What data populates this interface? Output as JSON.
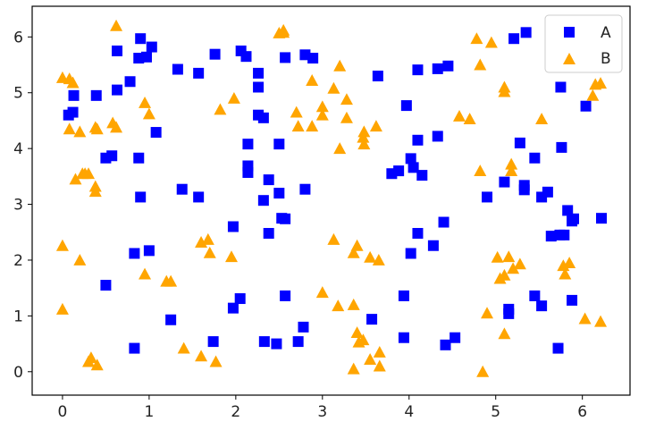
{
  "chart_data": {
    "type": "scatter",
    "title": "",
    "xlabel": "",
    "ylabel": "",
    "xlim": [
      -0.35,
      6.55
    ],
    "ylim": [
      -0.42,
      6.55
    ],
    "xticks": [
      "0",
      "1",
      "2",
      "3",
      "4",
      "5",
      "6"
    ],
    "yticks": [
      "0",
      "1",
      "2",
      "3",
      "4",
      "5",
      "6"
    ],
    "grid": false,
    "legend": "top-right",
    "series": [
      {
        "name": "A",
        "marker": "square",
        "color": "#0000ff",
        "points": [
          [
            0.07,
            4.6
          ],
          [
            0.12,
            4.65
          ],
          [
            0.13,
            4.95
          ],
          [
            0.39,
            4.95
          ],
          [
            0.5,
            1.55
          ],
          [
            0.5,
            3.83
          ],
          [
            0.57,
            3.87
          ],
          [
            0.63,
            5.05
          ],
          [
            0.63,
            5.75
          ],
          [
            0.78,
            5.2
          ],
          [
            0.83,
            0.42
          ],
          [
            0.83,
            2.12
          ],
          [
            0.88,
            3.83
          ],
          [
            0.88,
            5.62
          ],
          [
            0.9,
            3.13
          ],
          [
            0.9,
            5.97
          ],
          [
            0.97,
            5.64
          ],
          [
            1.0,
            2.17
          ],
          [
            1.03,
            5.82
          ],
          [
            1.08,
            4.29
          ],
          [
            1.25,
            0.93
          ],
          [
            1.33,
            5.42
          ],
          [
            1.38,
            3.27
          ],
          [
            1.57,
            3.13
          ],
          [
            1.57,
            5.35
          ],
          [
            1.74,
            0.54
          ],
          [
            1.76,
            5.69
          ],
          [
            1.97,
            1.14
          ],
          [
            1.97,
            2.6
          ],
          [
            2.05,
            1.31
          ],
          [
            2.06,
            5.75
          ],
          [
            2.12,
            5.65
          ],
          [
            2.14,
            4.08
          ],
          [
            2.14,
            3.57
          ],
          [
            2.14,
            3.69
          ],
          [
            2.26,
            5.35
          ],
          [
            2.26,
            5.1
          ],
          [
            2.26,
            4.6
          ],
          [
            2.32,
            4.55
          ],
          [
            2.32,
            3.07
          ],
          [
            2.33,
            0.54
          ],
          [
            2.38,
            2.48
          ],
          [
            2.38,
            3.44
          ],
          [
            2.47,
            0.5
          ],
          [
            2.5,
            3.2
          ],
          [
            2.5,
            4.08
          ],
          [
            2.53,
            2.75
          ],
          [
            2.57,
            1.36
          ],
          [
            2.57,
            2.74
          ],
          [
            2.57,
            5.63
          ],
          [
            2.72,
            0.54
          ],
          [
            2.78,
            0.8
          ],
          [
            2.8,
            3.27
          ],
          [
            2.8,
            5.68
          ],
          [
            2.89,
            5.62
          ],
          [
            3.57,
            0.94
          ],
          [
            3.64,
            5.3
          ],
          [
            3.8,
            3.55
          ],
          [
            3.88,
            3.6
          ],
          [
            3.94,
            0.61
          ],
          [
            3.94,
            1.36
          ],
          [
            3.97,
            4.77
          ],
          [
            4.02,
            3.82
          ],
          [
            4.02,
            2.12
          ],
          [
            4.05,
            3.66
          ],
          [
            4.1,
            4.15
          ],
          [
            4.1,
            5.41
          ],
          [
            4.1,
            2.48
          ],
          [
            4.15,
            3.52
          ],
          [
            4.28,
            2.26
          ],
          [
            4.33,
            5.43
          ],
          [
            4.33,
            4.22
          ],
          [
            4.4,
            2.68
          ],
          [
            4.42,
            0.48
          ],
          [
            4.45,
            5.48
          ],
          [
            4.53,
            0.61
          ],
          [
            4.9,
            3.13
          ],
          [
            5.1,
            3.4
          ],
          [
            5.15,
            1.04
          ],
          [
            5.15,
            1.12
          ],
          [
            5.21,
            5.97
          ],
          [
            5.28,
            4.1
          ],
          [
            5.33,
            3.26
          ],
          [
            5.33,
            3.34
          ],
          [
            5.35,
            6.08
          ],
          [
            5.45,
            3.83
          ],
          [
            5.45,
            1.36
          ],
          [
            5.53,
            1.18
          ],
          [
            5.53,
            3.13
          ],
          [
            5.6,
            3.22
          ],
          [
            5.64,
            2.43
          ],
          [
            5.72,
            0.42
          ],
          [
            5.74,
            2.45
          ],
          [
            5.75,
            5.1
          ],
          [
            5.76,
            4.02
          ],
          [
            5.79,
            2.45
          ],
          [
            5.83,
            2.89
          ],
          [
            5.88,
            2.7
          ],
          [
            5.9,
            2.74
          ],
          [
            5.88,
            1.28
          ],
          [
            6.04,
            4.76
          ],
          [
            6.22,
            2.75
          ]
        ]
      },
      {
        "name": "B",
        "marker": "triangle",
        "color": "#ffa500",
        "points": [
          [
            0.0,
            1.12
          ],
          [
            0.0,
            2.26
          ],
          [
            0.0,
            5.27
          ],
          [
            0.08,
            4.35
          ],
          [
            0.08,
            5.25
          ],
          [
            0.12,
            5.18
          ],
          [
            0.15,
            3.45
          ],
          [
            0.2,
            4.3
          ],
          [
            0.2,
            2.0
          ],
          [
            0.23,
            3.55
          ],
          [
            0.26,
            3.55
          ],
          [
            0.3,
            3.55
          ],
          [
            0.3,
            0.18
          ],
          [
            0.33,
            0.25
          ],
          [
            0.38,
            3.32
          ],
          [
            0.38,
            4.38
          ],
          [
            0.38,
            3.23
          ],
          [
            0.4,
            4.35
          ],
          [
            0.4,
            0.12
          ],
          [
            0.58,
            4.46
          ],
          [
            0.62,
            4.38
          ],
          [
            0.62,
            6.2
          ],
          [
            0.95,
            4.82
          ],
          [
            0.95,
            1.75
          ],
          [
            1.0,
            4.62
          ],
          [
            1.2,
            1.62
          ],
          [
            1.25,
            1.62
          ],
          [
            1.4,
            0.42
          ],
          [
            1.6,
            2.32
          ],
          [
            1.6,
            0.28
          ],
          [
            1.68,
            2.37
          ],
          [
            1.7,
            2.13
          ],
          [
            1.77,
            0.18
          ],
          [
            1.82,
            4.7
          ],
          [
            1.95,
            2.06
          ],
          [
            1.98,
            4.9
          ],
          [
            2.5,
            6.07
          ],
          [
            2.55,
            6.12
          ],
          [
            2.55,
            6.08
          ],
          [
            2.7,
            4.65
          ],
          [
            2.72,
            4.4
          ],
          [
            2.88,
            5.22
          ],
          [
            2.88,
            4.4
          ],
          [
            3.0,
            4.75
          ],
          [
            3.0,
            4.6
          ],
          [
            3.0,
            1.42
          ],
          [
            3.13,
            5.08
          ],
          [
            3.13,
            2.37
          ],
          [
            3.18,
            1.18
          ],
          [
            3.2,
            5.48
          ],
          [
            3.2,
            4.0
          ],
          [
            3.28,
            4.88
          ],
          [
            3.28,
            4.55
          ],
          [
            3.36,
            0.05
          ],
          [
            3.36,
            1.2
          ],
          [
            3.36,
            2.13
          ],
          [
            3.4,
            0.7
          ],
          [
            3.4,
            2.26
          ],
          [
            3.42,
            0.53
          ],
          [
            3.47,
            0.57
          ],
          [
            3.47,
            4.2
          ],
          [
            3.48,
            4.3
          ],
          [
            3.48,
            4.08
          ],
          [
            3.55,
            0.22
          ],
          [
            3.55,
            2.05
          ],
          [
            3.62,
            4.4
          ],
          [
            3.65,
            2.0
          ],
          [
            3.66,
            0.1
          ],
          [
            3.66,
            0.35
          ],
          [
            4.58,
            4.58
          ],
          [
            4.7,
            4.53
          ],
          [
            4.78,
            5.97
          ],
          [
            4.82,
            5.5
          ],
          [
            4.82,
            3.6
          ],
          [
            4.85,
            0.0
          ],
          [
            4.9,
            1.05
          ],
          [
            4.95,
            5.9
          ],
          [
            5.02,
            2.05
          ],
          [
            5.05,
            1.67
          ],
          [
            5.1,
            1.73
          ],
          [
            5.1,
            5.02
          ],
          [
            5.1,
            5.1
          ],
          [
            5.1,
            0.68
          ],
          [
            5.15,
            2.06
          ],
          [
            5.18,
            3.72
          ],
          [
            5.18,
            3.6
          ],
          [
            5.2,
            1.85
          ],
          [
            5.28,
            1.93
          ],
          [
            5.53,
            4.53
          ],
          [
            5.78,
            1.9
          ],
          [
            5.8,
            1.75
          ],
          [
            5.85,
            1.95
          ],
          [
            6.03,
            0.95
          ],
          [
            6.12,
            4.95
          ],
          [
            6.15,
            5.15
          ],
          [
            6.21,
            5.17
          ],
          [
            6.21,
            0.9
          ]
        ]
      }
    ]
  }
}
